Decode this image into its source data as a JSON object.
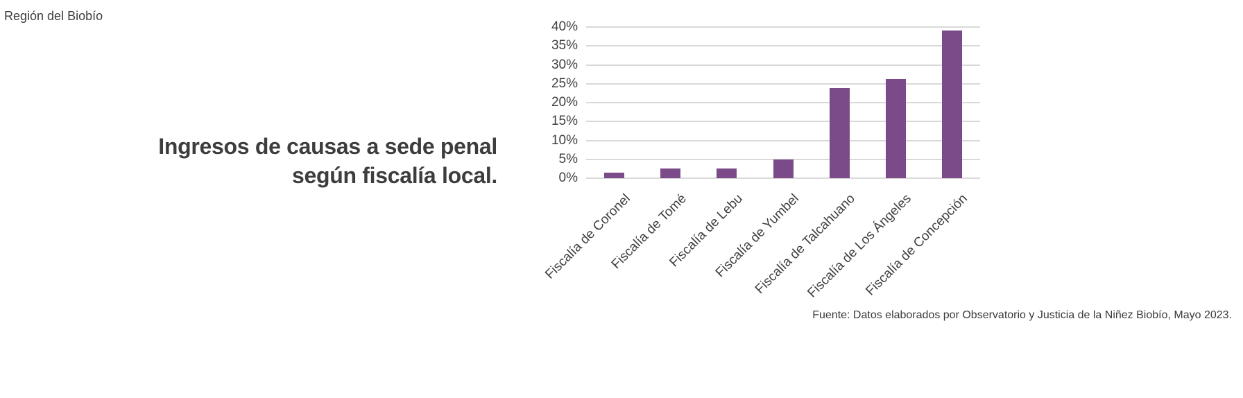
{
  "page": {
    "region_label": "Región del Biobío",
    "title_lines": [
      "Ingresos de causas a sede penal",
      "según fiscalía local."
    ],
    "source_note": "Fuente: Datos elaborados por Observatorio y Justicia de la Niñez Biobío, Mayo 2023."
  },
  "chart_data": {
    "type": "bar",
    "title": "Ingresos de causas a sede penal según fiscalía local.",
    "categories": [
      "Fiscalía de Coronel",
      "Fiscalía de Tomé",
      "Fiscalía de Lebu",
      "Fiscalía de Yumbel",
      "Fiscalía de Talcahuano",
      "Fiscalía de Los Ángeles",
      "Fiscalía de Concepción"
    ],
    "values": [
      1.5,
      2.5,
      2.5,
      5.0,
      23.8,
      26.3,
      39.0
    ],
    "unit": "%",
    "xlabel": "",
    "ylabel": "",
    "ylim": [
      0,
      40
    ],
    "ytick_step": 5,
    "ytick_labels": [
      "0%",
      "5%",
      "10%",
      "15%",
      "20%",
      "25%",
      "30%",
      "35%",
      "40%"
    ],
    "grid": true,
    "legend": false,
    "x_label_rotation_deg": 45,
    "bar_color": "#7a4b88",
    "gridline_color": "#d9d9d9",
    "text_color": "#3f3f3f"
  }
}
